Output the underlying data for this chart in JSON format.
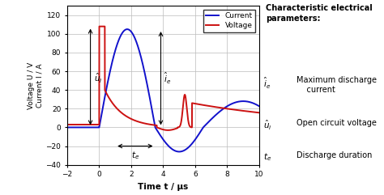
{
  "xlim": [
    -2,
    10
  ],
  "ylim": [
    -40,
    130
  ],
  "xlabel": "Time t / μs",
  "ylabel": "Voltage U / V\nCurrent I / A",
  "yticks": [
    -40,
    -20,
    0,
    20,
    40,
    60,
    80,
    100,
    120
  ],
  "xticks": [
    -2,
    0,
    2,
    4,
    6,
    8,
    10
  ],
  "current_color": "#1111CC",
  "voltage_color": "#CC1111",
  "grid_color": "#bbbbbb",
  "background_color": "#ffffff",
  "legend_labels": [
    "Current",
    "Voltage"
  ],
  "fig_width": 4.74,
  "fig_height": 2.41,
  "dpi": 100
}
